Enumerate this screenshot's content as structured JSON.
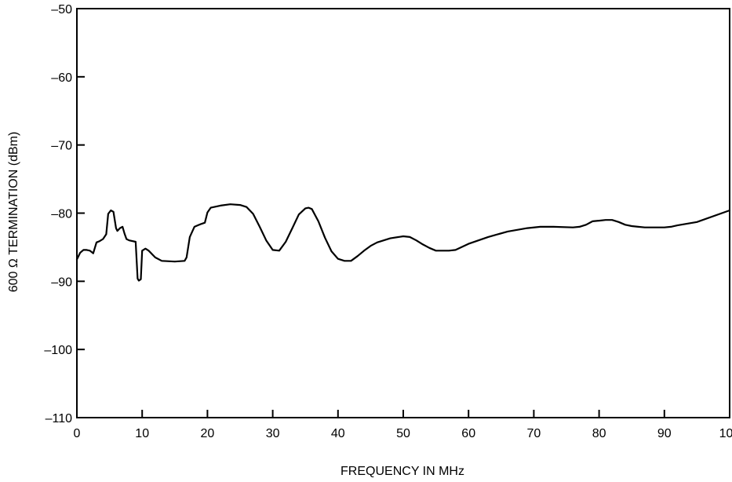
{
  "chart_data": {
    "type": "line",
    "title": "",
    "xlabel": "FREQUENCY IN MHz",
    "ylabel": "600 Ω TERMINATION (dBm)",
    "xlim": [
      0,
      100
    ],
    "ylim": [
      -110,
      -50
    ],
    "xticks": [
      0,
      10,
      20,
      30,
      40,
      50,
      60,
      70,
      80,
      90,
      100
    ],
    "yticks": [
      -110,
      -100,
      -90,
      -80,
      -70,
      -60,
      -50
    ],
    "xtick_labels": [
      "0",
      "10",
      "20",
      "30",
      "40",
      "50",
      "60",
      "70",
      "80",
      "90",
      "100"
    ],
    "ytick_labels": [
      "–110",
      "–100",
      "–90",
      "–80",
      "–70",
      "–60",
      "–50"
    ],
    "grid": false,
    "legend": "none",
    "series": [
      {
        "color": "#000000",
        "x": [
          0,
          0.5,
          1,
          1.5,
          2,
          2.5,
          3,
          3.5,
          4,
          4.5,
          4.8,
          5.2,
          5.6,
          6,
          6.2,
          6.6,
          7,
          7.3,
          7.6,
          8,
          9,
          9.3,
          9.5,
          9.8,
          10,
          10.5,
          11,
          12,
          13,
          15,
          16.5,
          16.8,
          17.3,
          18,
          19,
          19.6,
          20,
          20.5,
          22,
          23.5,
          25,
          26,
          27,
          28,
          29,
          30,
          31,
          32,
          33,
          34,
          35,
          35.5,
          36,
          37,
          38,
          39,
          40,
          41,
          42,
          43,
          44,
          45,
          46,
          48,
          50,
          51,
          52,
          53,
          54,
          55,
          57,
          58,
          60,
          63,
          66,
          69,
          71,
          73,
          76,
          77,
          78,
          79,
          80,
          81,
          82,
          83,
          84,
          85,
          86,
          87,
          88,
          89,
          90,
          91,
          92,
          95,
          100
        ],
        "y": [
          -86.8,
          -85.8,
          -85.4,
          -85.4,
          -85.5,
          -85.9,
          -84.3,
          -84.1,
          -83.8,
          -83.1,
          -80.1,
          -79.6,
          -79.8,
          -82.2,
          -82.6,
          -82.2,
          -82.0,
          -83.0,
          -83.8,
          -84.0,
          -84.2,
          -89.6,
          -89.9,
          -89.7,
          -85.5,
          -85.2,
          -85.5,
          -86.5,
          -87.0,
          -87.1,
          -87.0,
          -86.5,
          -83.5,
          -82.0,
          -81.6,
          -81.4,
          -79.9,
          -79.2,
          -78.9,
          -78.7,
          -78.8,
          -79.1,
          -80.1,
          -82.0,
          -84.0,
          -85.4,
          -85.5,
          -84.2,
          -82.2,
          -80.2,
          -79.3,
          -79.2,
          -79.4,
          -81.2,
          -83.6,
          -85.6,
          -86.7,
          -87.0,
          -87.0,
          -86.3,
          -85.5,
          -84.8,
          -84.3,
          -83.7,
          -83.4,
          -83.5,
          -84.0,
          -84.6,
          -85.1,
          -85.5,
          -85.5,
          -85.4,
          -84.5,
          -83.5,
          -82.7,
          -82.2,
          -82.0,
          -82.0,
          -82.1,
          -82.0,
          -81.7,
          -81.2,
          -81.1,
          -81.0,
          -81.0,
          -81.3,
          -81.7,
          -81.9,
          -82.0,
          -82.1,
          -82.1,
          -82.1,
          -82.1,
          -82.0,
          -81.8,
          -81.3,
          -79.6
        ]
      }
    ]
  }
}
